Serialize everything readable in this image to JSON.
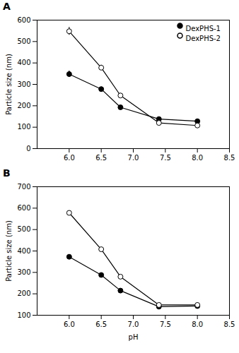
{
  "chart_data": [
    {
      "type": "line",
      "title": "A",
      "x": [
        6.0,
        6.5,
        6.8,
        7.4,
        8.0
      ],
      "series": [
        {
          "name": "DexPHS-1",
          "color": "black",
          "marker": "filled",
          "values": [
            348,
            278,
            193,
            138,
            128
          ],
          "yerr": [
            15,
            10,
            8,
            8,
            6
          ]
        },
        {
          "name": "DexPHS-2",
          "color": "black",
          "marker": "open",
          "values": [
            548,
            378,
            248,
            120,
            108
          ],
          "yerr": [
            18,
            12,
            10,
            8,
            8
          ]
        }
      ],
      "ylabel": "Particle size (nm)",
      "xlim": [
        5.5,
        8.5
      ],
      "xticks": [
        {
          "value": 6.0,
          "label": "6.0"
        },
        6.5,
        {
          "value": 7.0,
          "label": "7.0"
        },
        7.5,
        {
          "value": 8.0,
          "label": "8.0"
        },
        8.5
      ],
      "ylim": [
        0,
        600
      ],
      "yticks": [
        0,
        100,
        200,
        300,
        400,
        500,
        600
      ],
      "legend": "top-right"
    },
    {
      "type": "line",
      "title": "B",
      "x": [
        6.0,
        6.5,
        6.8,
        7.4,
        8.0
      ],
      "series": [
        {
          "color": "black",
          "marker": "filled",
          "values": [
            373,
            288,
            215,
            140,
            143
          ]
        },
        {
          "color": "black",
          "marker": "open",
          "values": [
            578,
            408,
            280,
            148,
            148
          ]
        }
      ],
      "ylabel": "Particle size (nm)",
      "xlabel": "pH",
      "xlim": [
        5.5,
        8.5
      ],
      "xticks": [
        {
          "value": 6.0,
          "label": "6.0"
        },
        6.5,
        {
          "value": 7.0,
          "label": "7.0"
        },
        7.5,
        {
          "value": 8.0,
          "label": "8.0"
        },
        8.5
      ],
      "ylim": [
        100,
        700
      ],
      "yticks": [
        100,
        200,
        300,
        400,
        500,
        600,
        700
      ]
    }
  ]
}
